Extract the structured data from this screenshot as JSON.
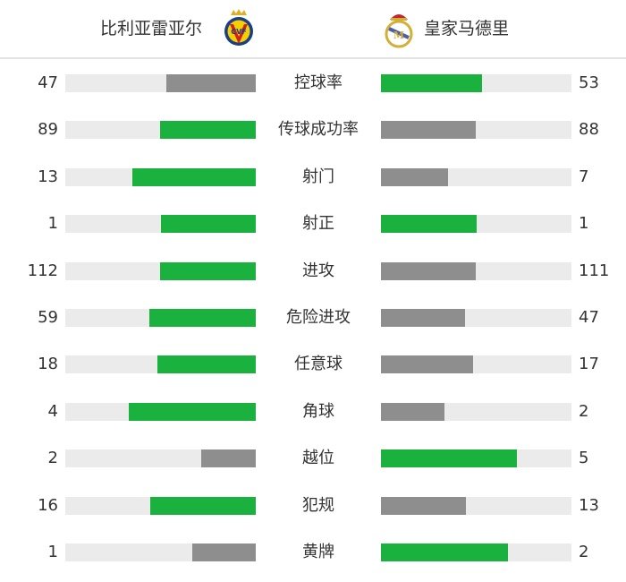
{
  "home": {
    "name": "比利亚雷亚尔",
    "logo": "villarreal-crest"
  },
  "away": {
    "name": "皇家马德里",
    "logo": "real-madrid-crest"
  },
  "colors": {
    "leading": "#1bb13e",
    "trailing": "#8e8e8e",
    "track": "#ebebeb"
  },
  "stats": [
    {
      "label": "控球率",
      "home": 47,
      "away": 53
    },
    {
      "label": "传球成功率",
      "home": 89,
      "away": 88
    },
    {
      "label": "射门",
      "home": 13,
      "away": 7
    },
    {
      "label": "射正",
      "home": 1,
      "away": 1
    },
    {
      "label": "进攻",
      "home": 112,
      "away": 111
    },
    {
      "label": "危险进攻",
      "home": 59,
      "away": 47
    },
    {
      "label": "任意球",
      "home": 18,
      "away": 17
    },
    {
      "label": "角球",
      "home": 4,
      "away": 2
    },
    {
      "label": "越位",
      "home": 2,
      "away": 5
    },
    {
      "label": "犯规",
      "home": 16,
      "away": 13
    },
    {
      "label": "黄牌",
      "home": 1,
      "away": 2
    }
  ]
}
